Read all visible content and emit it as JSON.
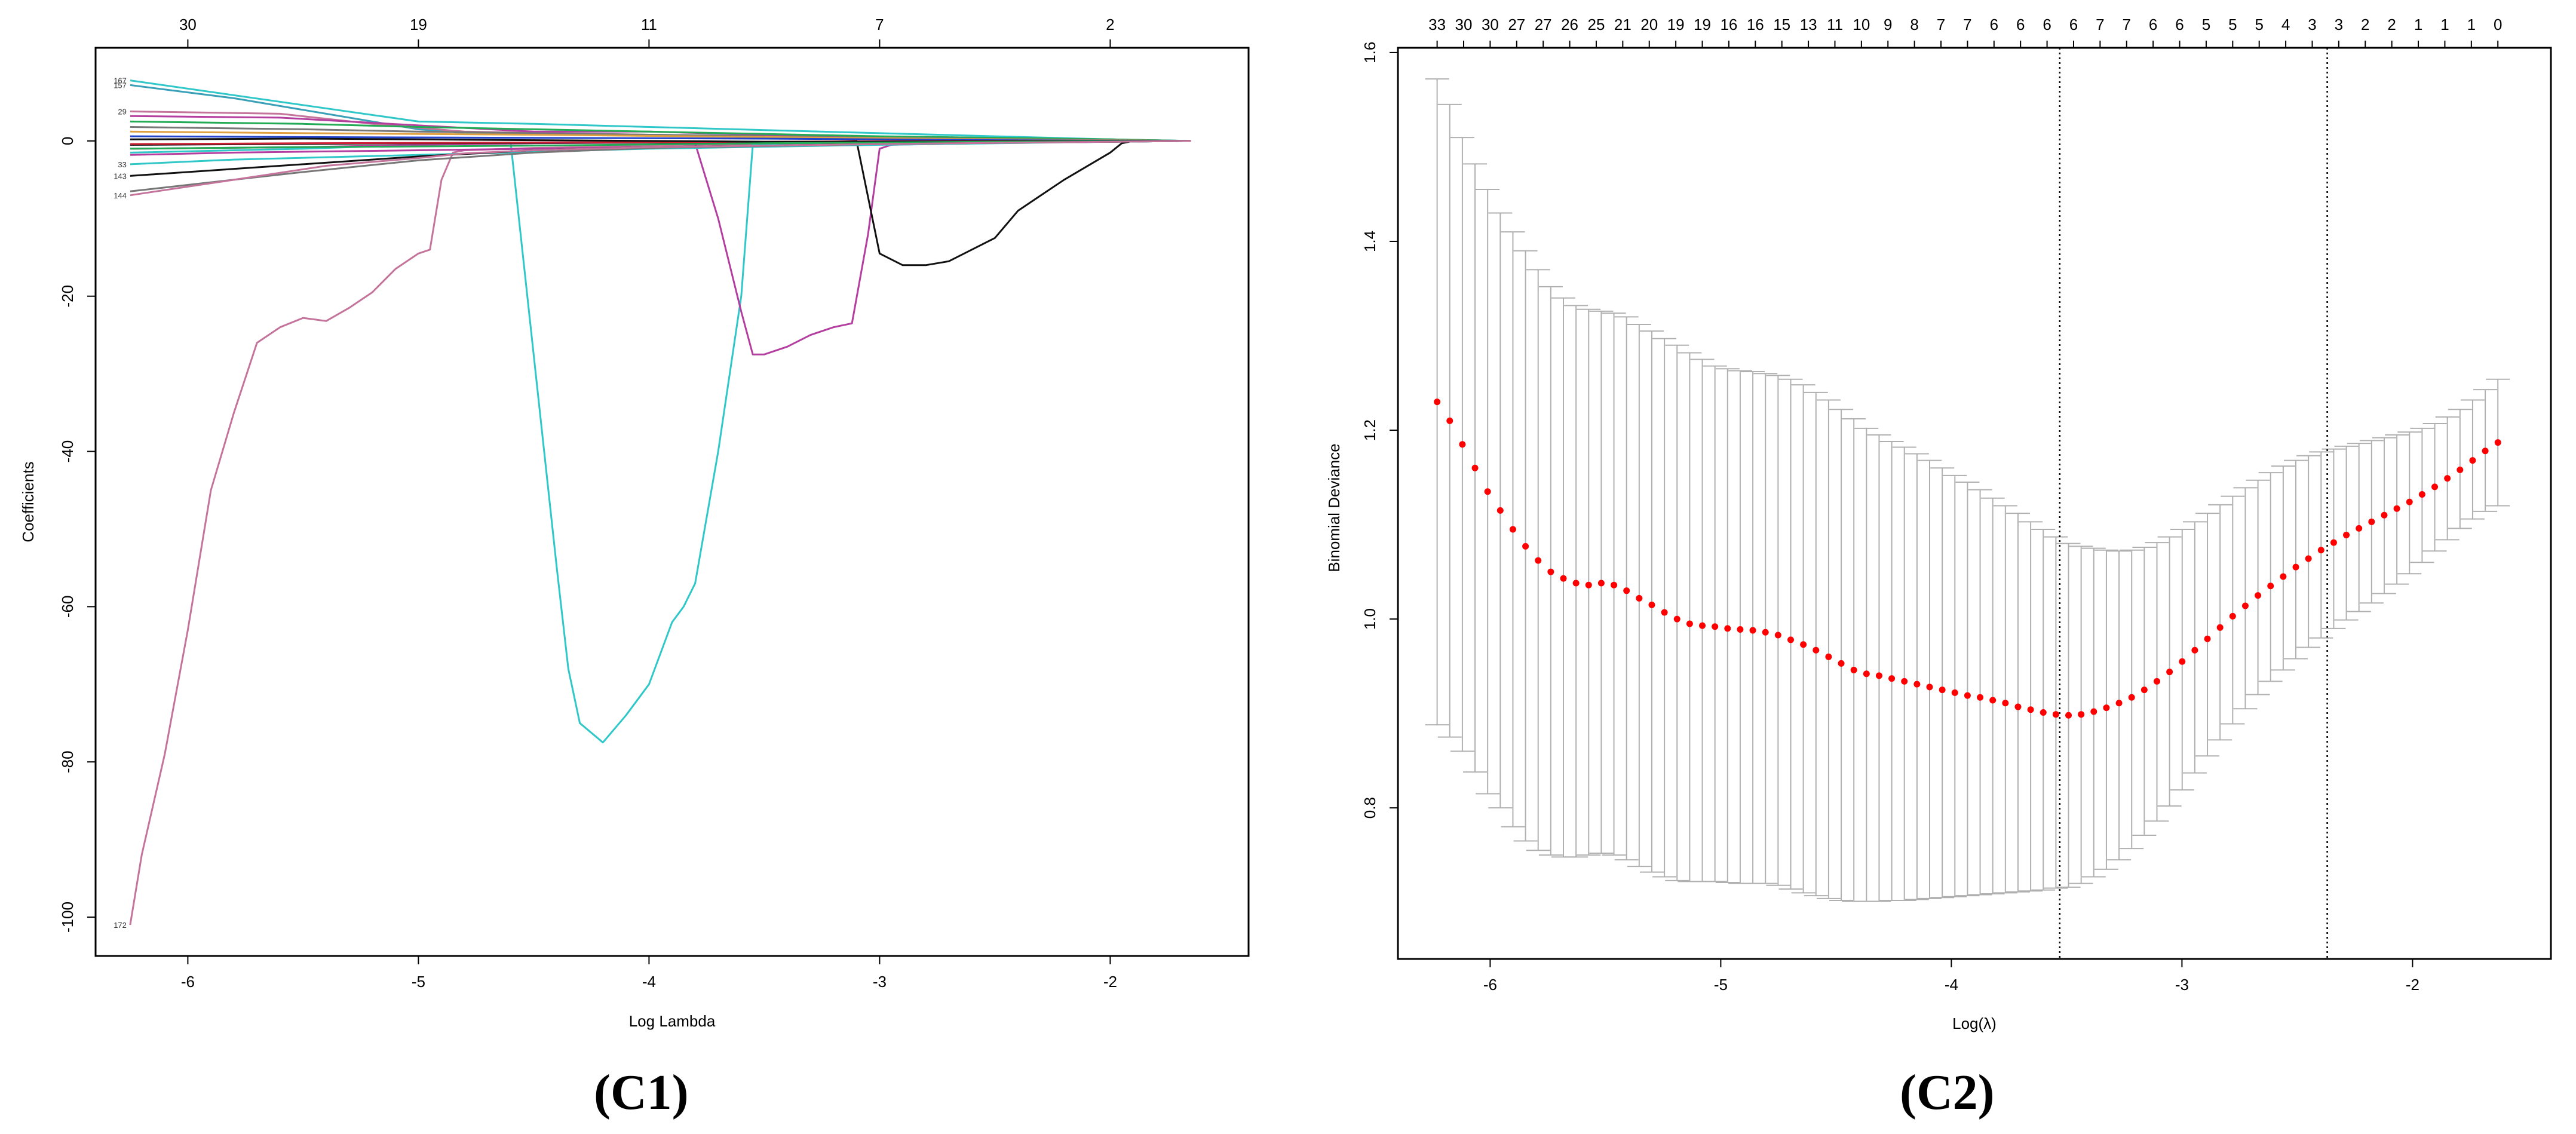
{
  "chart_data": [
    {
      "panel_label": "(C1)",
      "type": "line",
      "xlabel": "Log Lambda",
      "ylabel": "Coefficients",
      "xlim": [
        -6.4,
        -1.4
      ],
      "ylim": [
        -105,
        12
      ],
      "x_ticks": [
        -6,
        -5,
        -4,
        -3,
        -2
      ],
      "y_ticks": [
        -100,
        -80,
        -60,
        -40,
        -20,
        0
      ],
      "top_axis": [
        {
          "x": -6,
          "label": "30"
        },
        {
          "x": -5,
          "label": "19"
        },
        {
          "x": -4,
          "label": "11"
        },
        {
          "x": -3,
          "label": "7"
        },
        {
          "x": -2,
          "label": "2"
        }
      ],
      "grid": false,
      "series": [
        {
          "label": "172",
          "color": "#c4739a",
          "x": [
            -6.25,
            -6.2,
            -6.1,
            -6.0,
            -5.9,
            -5.8,
            -5.7,
            -5.6,
            -5.5,
            -5.4,
            -5.3,
            -5.2,
            -5.1,
            -5.0,
            -4.95,
            -4.9,
            -4.85,
            -4.8,
            -4.7,
            -4.6,
            -4.5,
            -4.3,
            -4.0,
            -3.5,
            -3.0,
            -2.5,
            -2.0,
            -1.65
          ],
          "y": [
            -101,
            -92,
            -79,
            -63,
            -45,
            -35,
            -26,
            -24,
            -22.8,
            -23.2,
            -21.5,
            -19.5,
            -16.5,
            -14.5,
            -14,
            -5,
            -1.5,
            -1.2,
            -1.1,
            -1.0,
            -0.9,
            -0.8,
            -0.6,
            -0.4,
            -0.3,
            -0.2,
            -0.1,
            0
          ]
        },
        {
          "label": "",
          "color": "#2fc7c7",
          "x": [
            -6.25,
            -5.5,
            -5.0,
            -4.7,
            -4.6,
            -4.4,
            -4.35,
            -4.3,
            -4.2,
            -4.1,
            -4.0,
            -3.9,
            -3.85,
            -3.8,
            -3.7,
            -3.6,
            -3.55,
            -3.4,
            -3.0,
            -2.5,
            -2.0,
            -1.65
          ],
          "y": [
            -1.5,
            -1.0,
            -0.5,
            -0.3,
            -0.2,
            -55,
            -68,
            -75,
            -77.5,
            -74,
            -70,
            -62,
            -60,
            -57,
            -40,
            -20,
            -0.5,
            -0.3,
            -0.2,
            -0.1,
            0,
            0
          ]
        },
        {
          "label": "",
          "color": "#b43ea0",
          "x": [
            -6.25,
            -5.5,
            -5.0,
            -4.5,
            -4.0,
            -3.8,
            -3.7,
            -3.6,
            -3.55,
            -3.5,
            -3.4,
            -3.3,
            -3.2,
            -3.12,
            -3.05,
            -3.0,
            -2.95,
            -2.5,
            -2.0,
            -1.65
          ],
          "y": [
            -1.0,
            -0.8,
            -0.5,
            -0.3,
            -0.2,
            -0.3,
            -10,
            -22,
            -27.5,
            -27.5,
            -26.5,
            -25,
            -24,
            -23.5,
            -12,
            -1,
            -0.5,
            -0.2,
            -0.1,
            0
          ]
        },
        {
          "label": "",
          "color": "#111111",
          "x": [
            -6.25,
            -5.0,
            -4.0,
            -3.2,
            -3.1,
            -3.0,
            -2.9,
            -2.8,
            -2.7,
            -2.6,
            -2.5,
            -2.4,
            -2.3,
            -2.2,
            -2.0,
            -1.95,
            -1.9,
            -1.65
          ],
          "y": [
            -0.5,
            -0.3,
            -0.2,
            -0.1,
            0,
            -14.5,
            -16,
            -16,
            -15.5,
            -14,
            -12.5,
            -9,
            -7,
            -5,
            -1.5,
            -0.3,
            0,
            0
          ]
        },
        {
          "label": "167",
          "color": "#2fc7c7",
          "x": [
            -6.25,
            -5.0,
            -4.5,
            -4.0,
            -3.5,
            -3.0,
            -2.5,
            -2.0,
            -1.65
          ],
          "y": [
            7.8,
            2.5,
            2.2,
            1.8,
            1.4,
            1.0,
            0.6,
            0.2,
            0
          ]
        },
        {
          "label": "157",
          "color": "#3aa0b8",
          "x": [
            -6.25,
            -5.8,
            -5.4,
            -5.0,
            -4.8,
            -4.0,
            -3.0,
            -2.0,
            -1.65
          ],
          "y": [
            7.2,
            5.5,
            3.5,
            1.5,
            1.0,
            0.8,
            0.5,
            0.2,
            0
          ]
        },
        {
          "label": "29",
          "color": "#c4739a",
          "x": [
            -6.25,
            -5.6,
            -5.2,
            -4.8,
            -4.0,
            -3.0,
            -2.0,
            -1.65
          ],
          "y": [
            3.8,
            3.5,
            2.2,
            1.2,
            0.8,
            0.4,
            0.1,
            0
          ]
        },
        {
          "label": "",
          "color": "#b43ea0",
          "x": [
            -6.25,
            -5.6,
            -5.0,
            -4.5,
            -4.0,
            -3.0,
            -2.0,
            -1.65
          ],
          "y": [
            3.2,
            3.0,
            2.0,
            1.2,
            1.2,
            0.4,
            0.1,
            0
          ]
        },
        {
          "label": "",
          "color": "#22aa55",
          "x": [
            -6.25,
            -5.5,
            -5.0,
            -4.5,
            -4.0,
            -3.0,
            -2.0,
            -1.65
          ],
          "y": [
            2.5,
            2.2,
            1.8,
            1.5,
            1.2,
            0.6,
            0.2,
            0
          ]
        },
        {
          "label": "",
          "color": "#777777",
          "x": [
            -6.25,
            -5.5,
            -5.0,
            -4.0,
            -3.0,
            -2.0,
            -1.65
          ],
          "y": [
            1.8,
            1.5,
            1.2,
            0.8,
            0.4,
            0.1,
            0
          ]
        },
        {
          "label": "",
          "color": "#e0a040",
          "x": [
            -6.25,
            -5.5,
            -4.5,
            -3.5,
            -2.5,
            -1.65
          ],
          "y": [
            1.2,
            1.0,
            0.8,
            0.5,
            0.2,
            0
          ]
        },
        {
          "label": "",
          "color": "#2244cc",
          "x": [
            -6.25,
            -5.5,
            -4.5,
            -3.5,
            -2.5,
            -1.65
          ],
          "y": [
            0.6,
            0.5,
            0.4,
            0.3,
            0.1,
            0
          ]
        },
        {
          "label": "",
          "color": "#cc2233",
          "x": [
            -6.25,
            -5.5,
            -4.5,
            -3.5,
            -2.5,
            -1.65
          ],
          "y": [
            -0.4,
            -0.3,
            -0.2,
            -0.1,
            0,
            0
          ]
        },
        {
          "label": "",
          "color": "#111111",
          "x": [
            -6.25,
            -5.5,
            -5.0,
            -4.5,
            -4.0,
            -3.5,
            -3.0,
            -2.0,
            -1.65
          ],
          "y": [
            0.2,
            0.3,
            0.2,
            0.1,
            0.0,
            -0.1,
            -0.1,
            0,
            0
          ]
        },
        {
          "label": "",
          "color": "#22aa55",
          "x": [
            -6.25,
            -5.5,
            -4.5,
            -3.5,
            -2.5,
            -1.65
          ],
          "y": [
            -1.0,
            -0.8,
            -0.6,
            -0.3,
            -0.1,
            0
          ]
        },
        {
          "label": "",
          "color": "#b43ea0",
          "x": [
            -6.25,
            -5.8,
            -5.0,
            -4.0,
            -3.0,
            -2.0,
            -1.65
          ],
          "y": [
            -1.8,
            -1.5,
            -1.2,
            -0.8,
            -0.4,
            -0.1,
            0
          ]
        },
        {
          "label": "33",
          "color": "#2fc7c7",
          "x": [
            -6.25,
            -5.8,
            -5.0,
            -4.0,
            -3.0,
            -2.0,
            -1.65
          ],
          "y": [
            -3.0,
            -2.4,
            -1.8,
            -1.0,
            -0.5,
            -0.1,
            0
          ]
        },
        {
          "label": "143",
          "color": "#111111",
          "x": [
            -6.25,
            -5.5,
            -5.0,
            -4.5,
            -4.0,
            -3.0,
            -2.0,
            -1.65
          ],
          "y": [
            -4.5,
            -3.0,
            -2.0,
            -1.2,
            -0.8,
            -0.4,
            -0.1,
            0
          ]
        },
        {
          "label": "",
          "color": "#777777",
          "x": [
            -6.25,
            -5.5,
            -5.0,
            -4.5,
            -4.0,
            -3.0,
            -2.0,
            -1.65
          ],
          "y": [
            -6.5,
            -4.0,
            -2.5,
            -1.5,
            -0.9,
            -0.4,
            -0.1,
            0
          ]
        },
        {
          "label": "144",
          "color": "#c4739a",
          "x": [
            -6.25,
            -5.8,
            -5.4,
            -5.0,
            -4.8,
            -4.5,
            -4.0,
            -3.0,
            -2.0,
            -1.65
          ],
          "y": [
            -7.0,
            -5.0,
            -3.2,
            -2.2,
            -1.6,
            -1.2,
            -0.8,
            -0.4,
            -0.1,
            0
          ]
        }
      ]
    },
    {
      "panel_label": "(C2)",
      "type": "scatter",
      "xlabel": "Log(λ)",
      "ylabel": "Binomial Deviance",
      "xlim": [
        -6.4,
        -1.4
      ],
      "ylim": [
        0.64,
        1.605
      ],
      "x_ticks": [
        -6,
        -5,
        -4,
        -3,
        -2
      ],
      "y_ticks": [
        0.8,
        1.0,
        1.2,
        1.4,
        1.6
      ],
      "top_axis_labels": [
        "33",
        "30",
        "30",
        "27",
        "27",
        "26",
        "25",
        "21",
        "20",
        "19",
        "19",
        "16",
        "16",
        "15",
        "13",
        "11",
        "10",
        "9",
        "8",
        "7",
        "7",
        "6",
        "6",
        "6",
        "6",
        "7",
        "7",
        "6",
        "6",
        "5",
        "5",
        "5",
        "4",
        "3",
        "3",
        "2",
        "2",
        "1",
        "1",
        "1",
        "0"
      ],
      "top_axis_x_range": [
        -6.23,
        -1.63
      ],
      "vlines": [
        -3.53,
        -2.37
      ],
      "grid": false,
      "point_color": "#ff0000",
      "errorbar_color": "#b0b0b0",
      "x_range": [
        -6.23,
        -1.63
      ],
      "values": [
        1.23,
        1.21,
        1.185,
        1.16,
        1.135,
        1.115,
        1.095,
        1.077,
        1.062,
        1.05,
        1.043,
        1.038,
        1.036,
        1.038,
        1.036,
        1.03,
        1.022,
        1.015,
        1.007,
        1.0,
        0.995,
        0.993,
        0.992,
        0.99,
        0.989,
        0.988,
        0.986,
        0.983,
        0.978,
        0.973,
        0.967,
        0.96,
        0.953,
        0.946,
        0.942,
        0.94,
        0.937,
        0.934,
        0.931,
        0.928,
        0.925,
        0.922,
        0.919,
        0.917,
        0.914,
        0.911,
        0.907,
        0.904,
        0.901,
        0.899,
        0.898,
        0.899,
        0.902,
        0.906,
        0.911,
        0.917,
        0.925,
        0.934,
        0.944,
        0.955,
        0.967,
        0.979,
        0.991,
        1.003,
        1.014,
        1.025,
        1.035,
        1.045,
        1.055,
        1.064,
        1.073,
        1.081,
        1.089,
        1.096,
        1.103,
        1.11,
        1.117,
        1.124,
        1.132,
        1.14,
        1.149,
        1.158,
        1.168,
        1.178,
        1.187
      ],
      "upper": [
        1.572,
        1.545,
        1.51,
        1.482,
        1.455,
        1.43,
        1.41,
        1.39,
        1.37,
        1.352,
        1.34,
        1.332,
        1.328,
        1.326,
        1.324,
        1.32,
        1.312,
        1.305,
        1.297,
        1.29,
        1.282,
        1.275,
        1.268,
        1.265,
        1.263,
        1.262,
        1.26,
        1.258,
        1.254,
        1.248,
        1.24,
        1.232,
        1.222,
        1.212,
        1.202,
        1.195,
        1.188,
        1.182,
        1.175,
        1.168,
        1.16,
        1.152,
        1.145,
        1.137,
        1.128,
        1.12,
        1.112,
        1.103,
        1.095,
        1.087,
        1.08,
        1.077,
        1.075,
        1.073,
        1.072,
        1.073,
        1.076,
        1.081,
        1.087,
        1.095,
        1.103,
        1.112,
        1.121,
        1.13,
        1.139,
        1.147,
        1.155,
        1.162,
        1.168,
        1.173,
        1.177,
        1.18,
        1.183,
        1.186,
        1.189,
        1.192,
        1.195,
        1.198,
        1.202,
        1.207,
        1.214,
        1.222,
        1.232,
        1.243,
        1.254
      ],
      "lower": [
        0.888,
        0.875,
        0.86,
        0.838,
        0.815,
        0.8,
        0.78,
        0.765,
        0.755,
        0.75,
        0.748,
        0.748,
        0.75,
        0.752,
        0.75,
        0.745,
        0.738,
        0.732,
        0.727,
        0.723,
        0.722,
        0.722,
        0.722,
        0.721,
        0.72,
        0.72,
        0.72,
        0.718,
        0.714,
        0.71,
        0.707,
        0.704,
        0.702,
        0.701,
        0.701,
        0.701,
        0.702,
        0.702,
        0.703,
        0.704,
        0.705,
        0.706,
        0.707,
        0.708,
        0.709,
        0.71,
        0.711,
        0.712,
        0.713,
        0.715,
        0.716,
        0.72,
        0.727,
        0.735,
        0.745,
        0.757,
        0.771,
        0.786,
        0.802,
        0.819,
        0.837,
        0.855,
        0.872,
        0.889,
        0.905,
        0.92,
        0.934,
        0.946,
        0.958,
        0.97,
        0.98,
        0.99,
        0.999,
        1.008,
        1.017,
        1.027,
        1.037,
        1.048,
        1.06,
        1.072,
        1.084,
        1.096,
        1.106,
        1.114,
        1.12
      ]
    }
  ]
}
